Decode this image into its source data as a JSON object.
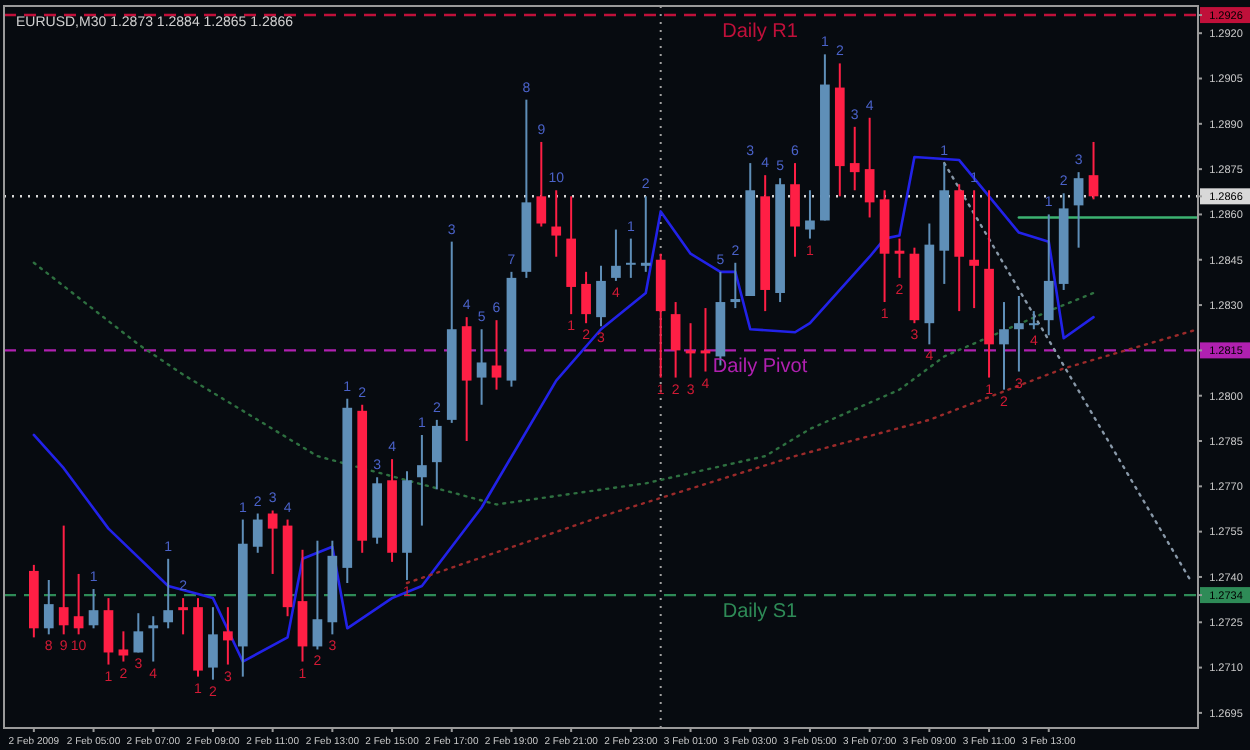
{
  "chart_data": {
    "type": "candlestick",
    "title": "EURUSD,M30  1.2873 1.2884 1.2865 1.2866",
    "x": [
      "2009-02-02T03:00",
      "2009-02-02T03:30",
      "2009-02-02T04:00",
      "2009-02-02T04:30",
      "2009-02-02T05:00",
      "2009-02-02T05:30",
      "2009-02-02T06:00",
      "2009-02-02T06:30",
      "2009-02-02T07:00",
      "2009-02-02T07:30",
      "2009-02-02T08:00",
      "2009-02-02T08:30",
      "2009-02-02T09:00",
      "2009-02-02T09:30",
      "2009-02-02T10:00",
      "2009-02-02T10:30",
      "2009-02-02T11:00",
      "2009-02-02T11:30",
      "2009-02-02T12:00",
      "2009-02-02T12:30",
      "2009-02-02T13:00",
      "2009-02-02T13:30",
      "2009-02-02T14:00",
      "2009-02-02T14:30",
      "2009-02-02T15:00",
      "2009-02-02T15:30",
      "2009-02-02T16:00",
      "2009-02-02T16:30",
      "2009-02-02T17:00",
      "2009-02-02T17:30",
      "2009-02-02T18:00",
      "2009-02-02T18:30",
      "2009-02-02T19:00",
      "2009-02-02T19:30",
      "2009-02-02T20:00",
      "2009-02-02T20:30",
      "2009-02-02T21:00",
      "2009-02-02T21:30",
      "2009-02-02T22:00",
      "2009-02-02T22:30",
      "2009-02-02T23:00",
      "2009-02-02T23:30",
      "2009-02-03T00:00",
      "2009-02-03T00:30",
      "2009-02-03T01:00",
      "2009-02-03T01:30",
      "2009-02-03T02:00",
      "2009-02-03T02:30",
      "2009-02-03T03:00",
      "2009-02-03T03:30",
      "2009-02-03T04:00",
      "2009-02-03T04:30",
      "2009-02-03T05:00",
      "2009-02-03T05:30",
      "2009-02-03T06:00",
      "2009-02-03T06:30",
      "2009-02-03T07:00",
      "2009-02-03T07:30",
      "2009-02-03T08:00",
      "2009-02-03T08:30",
      "2009-02-03T09:00",
      "2009-02-03T09:30",
      "2009-02-03T10:00",
      "2009-02-03T10:30",
      "2009-02-03T11:00",
      "2009-02-03T11:30",
      "2009-02-03T12:00",
      "2009-02-03T12:30",
      "2009-02-03T13:00",
      "2009-02-03T13:30",
      "2009-02-03T14:00",
      "2009-02-03T14:30"
    ],
    "ohlc": [
      [
        1.2742,
        1.2744,
        1.272,
        1.2723
      ],
      [
        1.2723,
        1.2739,
        1.2721,
        1.2731
      ],
      [
        1.273,
        1.2757,
        1.2721,
        1.2724
      ],
      [
        1.2727,
        1.2741,
        1.2721,
        1.2723
      ],
      [
        1.2724,
        1.2736,
        1.2723,
        1.2729
      ],
      [
        1.2729,
        1.2733,
        1.2711,
        1.2715
      ],
      [
        1.2716,
        1.2722,
        1.2712,
        1.2714
      ],
      [
        1.2715,
        1.2728,
        1.2715,
        1.2722
      ],
      [
        1.2723,
        1.2727,
        1.2712,
        1.2724
      ],
      [
        1.2725,
        1.2746,
        1.2723,
        1.2729
      ],
      [
        1.273,
        1.2733,
        1.2721,
        1.2729
      ],
      [
        1.273,
        1.2733,
        1.2707,
        1.2709
      ],
      [
        1.271,
        1.273,
        1.2706,
        1.2721
      ],
      [
        1.2722,
        1.273,
        1.2711,
        1.2719
      ],
      [
        1.2717,
        1.2759,
        1.2707,
        1.2751
      ],
      [
        1.275,
        1.2761,
        1.2748,
        1.2759
      ],
      [
        1.2761,
        1.2762,
        1.2741,
        1.2756
      ],
      [
        1.2757,
        1.2759,
        1.2727,
        1.273
      ],
      [
        1.2732,
        1.2749,
        1.2712,
        1.2717
      ],
      [
        1.2717,
        1.2752,
        1.2716,
        1.2726
      ],
      [
        1.2725,
        1.2752,
        1.2721,
        1.2747
      ],
      [
        1.2743,
        1.2799,
        1.2738,
        1.2796
      ],
      [
        1.2795,
        1.2797,
        1.2748,
        1.2752
      ],
      [
        1.2753,
        1.2773,
        1.2751,
        1.2771
      ],
      [
        1.2772,
        1.2779,
        1.2745,
        1.2748
      ],
      [
        1.2748,
        1.2775,
        1.2739,
        1.2772
      ],
      [
        1.2773,
        1.2787,
        1.2757,
        1.2777
      ],
      [
        1.2778,
        1.2792,
        1.2769,
        1.279
      ],
      [
        1.2792,
        1.2851,
        1.2791,
        1.2822
      ],
      [
        1.2823,
        1.2826,
        1.2785,
        1.2805
      ],
      [
        1.2806,
        1.2822,
        1.2797,
        1.2811
      ],
      [
        1.281,
        1.2825,
        1.2802,
        1.2806
      ],
      [
        1.2805,
        1.2841,
        1.2803,
        1.2839
      ],
      [
        1.2841,
        1.2898,
        1.2839,
        1.2864
      ],
      [
        1.2866,
        1.2884,
        1.2856,
        1.2857
      ],
      [
        1.2856,
        1.2868,
        1.2846,
        1.2853
      ],
      [
        1.2852,
        1.2866,
        1.2827,
        1.2836
      ],
      [
        1.2837,
        1.2841,
        1.2824,
        1.2827
      ],
      [
        1.2826,
        1.2843,
        1.2823,
        1.2838
      ],
      [
        1.2839,
        1.2855,
        1.2838,
        1.2843
      ],
      [
        1.2844,
        1.2852,
        1.2839,
        1.2844
      ],
      [
        1.2843,
        1.2866,
        1.2841,
        1.2844
      ],
      [
        1.2845,
        1.2847,
        1.2806,
        1.2828
      ],
      [
        1.2827,
        1.2831,
        1.2806,
        1.2815
      ],
      [
        1.2815,
        1.2824,
        1.2806,
        1.2814
      ],
      [
        1.2815,
        1.2829,
        1.2808,
        1.2814
      ],
      [
        1.2813,
        1.2841,
        1.281,
        1.2831
      ],
      [
        1.2831,
        1.2844,
        1.2829,
        1.2832
      ],
      [
        1.2833,
        1.2877,
        1.2833,
        1.2868
      ],
      [
        1.2866,
        1.2873,
        1.2828,
        1.2835
      ],
      [
        1.2834,
        1.2872,
        1.2831,
        1.287
      ],
      [
        1.287,
        1.2877,
        1.2846,
        1.2856
      ],
      [
        1.2855,
        1.2868,
        1.2852,
        1.2858
      ],
      [
        1.2858,
        1.2913,
        1.2858,
        1.2903
      ],
      [
        1.2902,
        1.291,
        1.2866,
        1.2876
      ],
      [
        1.2877,
        1.2889,
        1.2868,
        1.2874
      ],
      [
        1.2875,
        1.2892,
        1.2859,
        1.2864
      ],
      [
        1.2865,
        1.2868,
        1.2831,
        1.2847
      ],
      [
        1.2848,
        1.2852,
        1.2839,
        1.2847
      ],
      [
        1.2847,
        1.2849,
        1.2824,
        1.2825
      ],
      [
        1.2824,
        1.2857,
        1.2817,
        1.285
      ],
      [
        1.2848,
        1.2877,
        1.2837,
        1.2868
      ],
      [
        1.2868,
        1.287,
        1.2828,
        1.2846
      ],
      [
        1.2845,
        1.2868,
        1.2829,
        1.2843
      ],
      [
        1.2842,
        1.2868,
        1.2806,
        1.2817
      ],
      [
        1.2817,
        1.2831,
        1.2802,
        1.2822
      ],
      [
        1.2822,
        1.2833,
        1.2808,
        1.2824
      ],
      [
        1.2824,
        1.2828,
        1.2822,
        1.2824
      ],
      [
        1.2825,
        1.286,
        1.282,
        1.2838
      ],
      [
        1.2837,
        1.2867,
        1.2835,
        1.2862
      ],
      [
        1.2863,
        1.2874,
        1.2849,
        1.2872
      ],
      [
        1.2873,
        1.2884,
        1.2865,
        1.2866
      ]
    ],
    "colors": [
      "#ff1f45",
      "#5f8fb8",
      "#ff1f45",
      "#ff1f45",
      "#5f8fb8",
      "#ff1f45",
      "#ff1f45",
      "#5f8fb8",
      "#5f8fb8",
      "#5f8fb8",
      "#ff1f45",
      "#ff1f45",
      "#5f8fb8",
      "#ff1f45",
      "#5f8fb8",
      "#5f8fb8",
      "#ff1f45",
      "#ff1f45",
      "#ff1f45",
      "#5f8fb8",
      "#5f8fb8",
      "#5f8fb8",
      "#ff1f45",
      "#5f8fb8",
      "#ff1f45",
      "#5f8fb8",
      "#5f8fb8",
      "#5f8fb8",
      "#5f8fb8",
      "#ff1f45",
      "#5f8fb8",
      "#ff1f45",
      "#5f8fb8",
      "#5f8fb8",
      "#ff1f45",
      "#ff1f45",
      "#ff1f45",
      "#ff1f45",
      "#5f8fb8",
      "#5f8fb8",
      "#5f8fb8",
      "#5f8fb8",
      "#ff1f45",
      "#ff1f45",
      "#ff1f45",
      "#ff1f45",
      "#5f8fb8",
      "#5f8fb8",
      "#5f8fb8",
      "#ff1f45",
      "#5f8fb8",
      "#ff1f45",
      "#5f8fb8",
      "#5f8fb8",
      "#ff1f45",
      "#ff1f45",
      "#ff1f45",
      "#ff1f45",
      "#ff1f45",
      "#ff1f45",
      "#5f8fb8",
      "#5f8fb8",
      "#ff1f45",
      "#ff1f45",
      "#ff1f45",
      "#5f8fb8",
      "#5f8fb8",
      "#5f8fb8",
      "#5f8fb8",
      "#5f8fb8",
      "#5f8fb8",
      "#ff1f45"
    ],
    "series": [
      {
        "type": "line",
        "color": "#2222e8",
        "line_style": "solid",
        "x": [
          "2009-02-02T03:00",
          "2009-02-02T04:00",
          "2009-02-02T05:30",
          "2009-02-02T07:30",
          "2009-02-02T09:00",
          "2009-02-02T10:00",
          "2009-02-02T11:30",
          "2009-02-02T12:00",
          "2009-02-02T13:00",
          "2009-02-02T13:30",
          "2009-02-02T15:00",
          "2009-02-02T16:00",
          "2009-02-02T18:00",
          "2009-02-02T20:30",
          "2009-02-02T22:00",
          "2009-02-02T23:30",
          "2009-02-03T00:00",
          "2009-02-03T01:00",
          "2009-02-03T02:00",
          "2009-02-03T02:30",
          "2009-02-03T03:00",
          "2009-02-03T04:30",
          "2009-02-03T05:00",
          "2009-02-03T07:00",
          "2009-02-03T07:30",
          "2009-02-03T08:00",
          "2009-02-03T08:30",
          "2009-02-03T10:00",
          "2009-02-03T12:00",
          "2009-02-03T13:00",
          "2009-02-03T13:30",
          "2009-02-03T14:30"
        ],
        "values": [
          1.2787,
          1.2776,
          1.2756,
          1.2737,
          1.2733,
          1.2712,
          1.272,
          1.2746,
          1.275,
          1.2723,
          1.2733,
          1.2737,
          1.2763,
          1.2805,
          1.2822,
          1.2834,
          1.2861,
          1.2847,
          1.2841,
          1.2841,
          1.2822,
          1.2821,
          1.2824,
          1.2846,
          1.2852,
          1.2853,
          1.2879,
          1.2878,
          1.2854,
          1.2851,
          1.2819,
          1.2826
        ]
      },
      {
        "type": "line",
        "color": "#2e7040",
        "line_style": "dotted",
        "x": [
          "2009-02-02T03:00",
          "2009-02-02T06:30",
          "2009-02-02T08:00",
          "2009-02-02T12:30",
          "2009-02-02T18:30",
          "2009-02-02T23:30",
          "2009-02-03T03:30",
          "2009-02-03T05:00",
          "2009-02-03T08:00",
          "2009-02-03T09:30",
          "2009-02-03T13:00",
          "2009-02-03T14:30"
        ],
        "values": [
          1.2844,
          1.2817,
          1.2807,
          1.278,
          1.2764,
          1.2771,
          1.278,
          1.2789,
          1.2802,
          1.2813,
          1.2828,
          1.2834
        ]
      },
      {
        "type": "line",
        "color": "#9a2a2a",
        "line_style": "dotted",
        "x": [
          "2009-02-02T15:30",
          "2009-02-02T22:00",
          "2009-02-03T04:30",
          "2009-02-03T09:00",
          "2009-02-03T13:30",
          "2009-02-03T18:00"
        ],
        "values": [
          1.2738,
          1.276,
          1.278,
          1.2792,
          1.2809,
          1.2822
        ]
      },
      {
        "type": "line",
        "color": "#8898a8",
        "line_style": "dotted",
        "x": [
          "2009-02-03T09:30",
          "2009-02-03T17:48"
        ],
        "values": [
          1.2877,
          1.2738
        ]
      },
      {
        "type": "line",
        "color": "#3cb371",
        "line_style": "solid",
        "x": [
          "2009-02-03T12:00",
          "2009-02-03T18:00"
        ],
        "values": [
          1.2859,
          1.2859
        ]
      }
    ],
    "xlim": [
      "2009-02-02T02:00",
      "2009-02-03T18:00"
    ],
    "xticks": [
      {
        "value": "2009-02-02T03:00",
        "label": "2 Feb 2009"
      },
      {
        "value": "2009-02-02T05:00",
        "label": "2 Feb 05:00"
      },
      {
        "value": "2009-02-02T07:00",
        "label": "2 Feb 07:00"
      },
      {
        "value": "2009-02-02T09:00",
        "label": "2 Feb 09:00"
      },
      {
        "value": "2009-02-02T11:00",
        "label": "2 Feb 11:00"
      },
      {
        "value": "2009-02-02T13:00",
        "label": "2 Feb 13:00"
      },
      {
        "value": "2009-02-02T15:00",
        "label": "2 Feb 15:00"
      },
      {
        "value": "2009-02-02T17:00",
        "label": "2 Feb 17:00"
      },
      {
        "value": "2009-02-02T19:00",
        "label": "2 Feb 19:00"
      },
      {
        "value": "2009-02-02T21:00",
        "label": "2 Feb 21:00"
      },
      {
        "value": "2009-02-02T23:00",
        "label": "2 Feb 23:00"
      },
      {
        "value": "2009-02-03T01:00",
        "label": "3 Feb 01:00"
      },
      {
        "value": "2009-02-03T03:00",
        "label": "3 Feb 03:00"
      },
      {
        "value": "2009-02-03T05:00",
        "label": "3 Feb 05:00"
      },
      {
        "value": "2009-02-03T07:00",
        "label": "3 Feb 07:00"
      },
      {
        "value": "2009-02-03T09:00",
        "label": "3 Feb 09:00"
      },
      {
        "value": "2009-02-03T11:00",
        "label": "3 Feb 11:00"
      },
      {
        "value": "2009-02-03T13:00",
        "label": "3 Feb 13:00"
      }
    ],
    "ylim": [
      1.269,
      1.2929
    ],
    "yticks": [
      {
        "value": 1.2695,
        "label": "1.2695"
      },
      {
        "value": 1.271,
        "label": "1.2710"
      },
      {
        "value": 1.2725,
        "label": "1.2725"
      },
      {
        "value": 1.2734,
        "label": "1.2734"
      },
      {
        "value": 1.274,
        "label": "1.2740"
      },
      {
        "value": 1.2755,
        "label": "1.2755"
      },
      {
        "value": 1.277,
        "label": "1.2770"
      },
      {
        "value": 1.2785,
        "label": "1.2785"
      },
      {
        "value": 1.28,
        "label": "1.2800"
      },
      {
        "value": 1.2815,
        "label": "1.2815"
      },
      {
        "value": 1.283,
        "label": "1.2830"
      },
      {
        "value": 1.2845,
        "label": "1.2845"
      },
      {
        "value": 1.286,
        "label": "1.2860"
      },
      {
        "value": 1.2866,
        "label": "1.2866"
      },
      {
        "value": 1.2875,
        "label": "1.2875"
      },
      {
        "value": 1.289,
        "label": "1.2890"
      },
      {
        "value": 1.2905,
        "label": "1.2905"
      },
      {
        "value": 1.292,
        "label": "1.2920"
      },
      {
        "value": 1.2926,
        "label": "1.2926"
      }
    ],
    "ref_lines": [
      {
        "axis": "y",
        "value": 1.2926,
        "label": "Daily R1",
        "color": "#c0103a",
        "line_style": "dashed"
      },
      {
        "axis": "y",
        "value": 1.2815,
        "label": "Daily Pivot",
        "color": "#b020b0",
        "line_style": "dashed"
      },
      {
        "axis": "y",
        "value": 1.2734,
        "label": "Daily S1",
        "color": "#2e8b57",
        "line_style": "dashed"
      },
      {
        "axis": "y",
        "value": 1.2866,
        "color": "#d8d8d8",
        "line_style": "dotted"
      },
      {
        "axis": "x",
        "value": "2009-02-03T00:00",
        "color": "#a0a0a0",
        "line_style": "dotted"
      }
    ],
    "annotations": [
      {
        "text": "8",
        "x": "2009-02-02T19:30",
        "y": 1.2898
      },
      {
        "text": "9",
        "x": "2009-02-02T20:00",
        "y": 1.2884
      },
      {
        "text": "10",
        "x": "2009-02-02T20:30",
        "y": 1.2868
      },
      {
        "text": "3",
        "x": "2009-02-02T17:00",
        "y": 1.2851
      },
      {
        "text": "4",
        "x": "2009-02-02T17:30",
        "y": 1.2826
      },
      {
        "text": "5",
        "x": "2009-02-02T18:00",
        "y": 1.2822
      },
      {
        "text": "6",
        "x": "2009-02-02T18:30",
        "y": 1.2825
      },
      {
        "text": "7",
        "x": "2009-02-02T19:00",
        "y": 1.2841
      },
      {
        "text": "2",
        "x": "2009-02-02T16:30",
        "y": 1.2792
      },
      {
        "text": "1",
        "x": "2009-02-02T13:30",
        "y": 1.2799
      },
      {
        "text": "1",
        "x": "2009-02-02T23:00",
        "y": 1.2852
      },
      {
        "text": "2",
        "x": "2009-02-02T23:30",
        "y": 1.2866
      },
      {
        "text": "5",
        "x": "2009-02-03T02:00",
        "y": 1.2841
      },
      {
        "text": "2",
        "x": "2009-02-03T02:30",
        "y": 1.2844
      },
      {
        "text": "3",
        "x": "2009-02-03T03:00",
        "y": 1.2877
      },
      {
        "text": "4",
        "x": "2009-02-03T03:30",
        "y": 1.2873
      },
      {
        "text": "5",
        "x": "2009-02-03T04:00",
        "y": 1.2872
      },
      {
        "text": "6",
        "x": "2009-02-03T04:30",
        "y": 1.2877
      },
      {
        "text": "1",
        "x": "2009-02-03T05:30",
        "y": 1.2913
      },
      {
        "text": "2",
        "x": "2009-02-03T06:00",
        "y": 1.291
      },
      {
        "text": "3",
        "x": "2009-02-03T06:30",
        "y": 1.2889
      },
      {
        "text": "4",
        "x": "2009-02-03T07:00",
        "y": 1.2892
      },
      {
        "text": "1",
        "x": "2009-02-03T09:30",
        "y": 1.2877
      },
      {
        "text": "1",
        "x": "2009-02-03T10:30",
        "y": 1.2868
      },
      {
        "text": "1",
        "x": "2009-02-03T13:00",
        "y": 1.286
      },
      {
        "text": "2",
        "x": "2009-02-03T13:30",
        "y": 1.2867
      },
      {
        "text": "3",
        "x": "2009-02-03T14:00",
        "y": 1.2874
      },
      {
        "text": "1",
        "x": "2009-02-02T05:00",
        "y": 1.2736
      },
      {
        "text": "1",
        "x": "2009-02-02T07:30",
        "y": 1.2746
      },
      {
        "text": "2",
        "x": "2009-02-02T08:00",
        "y": 1.2733
      },
      {
        "text": "1",
        "x": "2009-02-02T10:00",
        "y": 1.2759
      },
      {
        "text": "2",
        "x": "2009-02-02T10:30",
        "y": 1.2761
      },
      {
        "text": "3",
        "x": "2009-02-02T11:00",
        "y": 1.2762
      },
      {
        "text": "4",
        "x": "2009-02-02T11:30",
        "y": 1.2759
      },
      {
        "text": "2",
        "x": "2009-02-02T14:00",
        "y": 1.2797
      },
      {
        "text": "3",
        "x": "2009-02-02T14:30",
        "y": 1.2773
      },
      {
        "text": "4",
        "x": "2009-02-02T15:00",
        "y": 1.2779
      },
      {
        "text": "1",
        "x": "2009-02-02T16:00",
        "y": 1.2787
      },
      {
        "text": "8",
        "x": "2009-02-02T03:30",
        "y": 1.2721
      },
      {
        "text": "9",
        "x": "2009-02-02T04:00",
        "y": 1.2721
      },
      {
        "text": "10",
        "x": "2009-02-02T04:30",
        "y": 1.2721
      },
      {
        "text": "1",
        "x": "2009-02-02T05:30",
        "y": 1.2711
      },
      {
        "text": "2",
        "x": "2009-02-02T06:00",
        "y": 1.2712
      },
      {
        "text": "3",
        "x": "2009-02-02T06:30",
        "y": 1.2715
      },
      {
        "text": "4",
        "x": "2009-02-02T07:00",
        "y": 1.2712
      },
      {
        "text": "1",
        "x": "2009-02-02T08:30",
        "y": 1.2707
      },
      {
        "text": "2",
        "x": "2009-02-02T09:00",
        "y": 1.2706
      },
      {
        "text": "3",
        "x": "2009-02-02T09:30",
        "y": 1.2711
      },
      {
        "text": "1",
        "x": "2009-02-02T12:00",
        "y": 1.2712
      },
      {
        "text": "2",
        "x": "2009-02-02T12:30",
        "y": 1.2716
      },
      {
        "text": "3",
        "x": "2009-02-02T13:00",
        "y": 1.2721
      },
      {
        "text": "1",
        "x": "2009-02-02T15:30",
        "y": 1.2739
      },
      {
        "text": "1",
        "x": "2009-02-02T21:00",
        "y": 1.2827
      },
      {
        "text": "2",
        "x": "2009-02-02T21:30",
        "y": 1.2824
      },
      {
        "text": "3",
        "x": "2009-02-02T22:00",
        "y": 1.2823
      },
      {
        "text": "4",
        "x": "2009-02-02T22:30",
        "y": 1.2838
      },
      {
        "text": "1",
        "x": "2009-02-03T00:00",
        "y": 1.2806
      },
      {
        "text": "2",
        "x": "2009-02-03T00:30",
        "y": 1.2806
      },
      {
        "text": "3",
        "x": "2009-02-03T01:00",
        "y": 1.2806
      },
      {
        "text": "4",
        "x": "2009-02-03T01:30",
        "y": 1.2808
      },
      {
        "text": "1",
        "x": "2009-02-03T05:00",
        "y": 1.2852
      },
      {
        "text": "1",
        "x": "2009-02-03T07:30",
        "y": 1.2831
      },
      {
        "text": "2",
        "x": "2009-02-03T08:00",
        "y": 1.2839
      },
      {
        "text": "3",
        "x": "2009-02-03T08:30",
        "y": 1.2824
      },
      {
        "text": "4",
        "x": "2009-02-03T09:00",
        "y": 1.2817
      },
      {
        "text": "1",
        "x": "2009-02-03T11:00",
        "y": 1.2806
      },
      {
        "text": "2",
        "x": "2009-02-03T11:30",
        "y": 1.2802
      },
      {
        "text": "3",
        "x": "2009-02-03T12:00",
        "y": 1.2808
      },
      {
        "text": "4",
        "x": "2009-02-03T12:30",
        "y": 1.2822
      }
    ]
  }
}
